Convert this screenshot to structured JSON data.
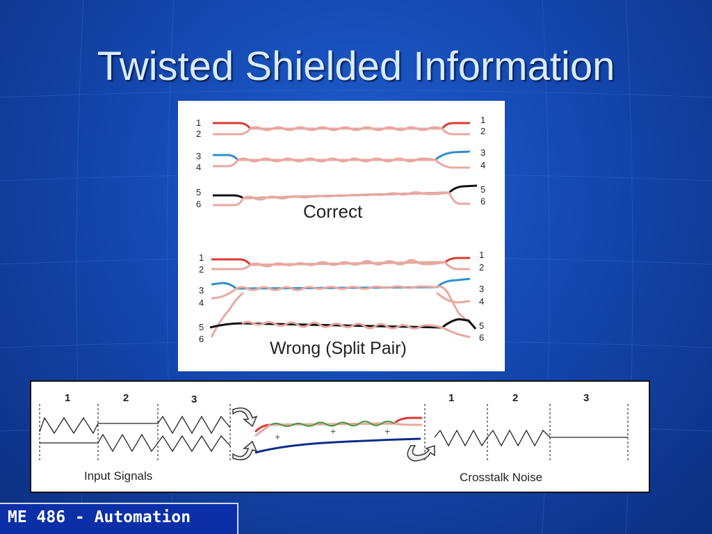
{
  "slide": {
    "title": "Twisted Shielded Information",
    "footer": "ME 486 - Automation"
  },
  "top_diagram": {
    "correct_label": "Correct",
    "wrong_label": "Wrong (Split Pair)",
    "pin_labels": [
      "1",
      "2",
      "3",
      "4",
      "5",
      "6"
    ],
    "colors": {
      "red": "#d83a30",
      "pink": "#e8a8a0",
      "blue": "#2f8fcc",
      "black": "#111111"
    }
  },
  "bottom_diagram": {
    "input_label": "Input Signals",
    "noise_label": "Crosstalk Noise",
    "segment_numbers": [
      "1",
      "2",
      "3"
    ],
    "noise_segment_numbers": [
      "1",
      "2",
      "3"
    ],
    "plus_sign": "+",
    "colors": {
      "cable": "#0d2a8a",
      "red": "#d83a30",
      "green": "#3a9a3a"
    }
  }
}
